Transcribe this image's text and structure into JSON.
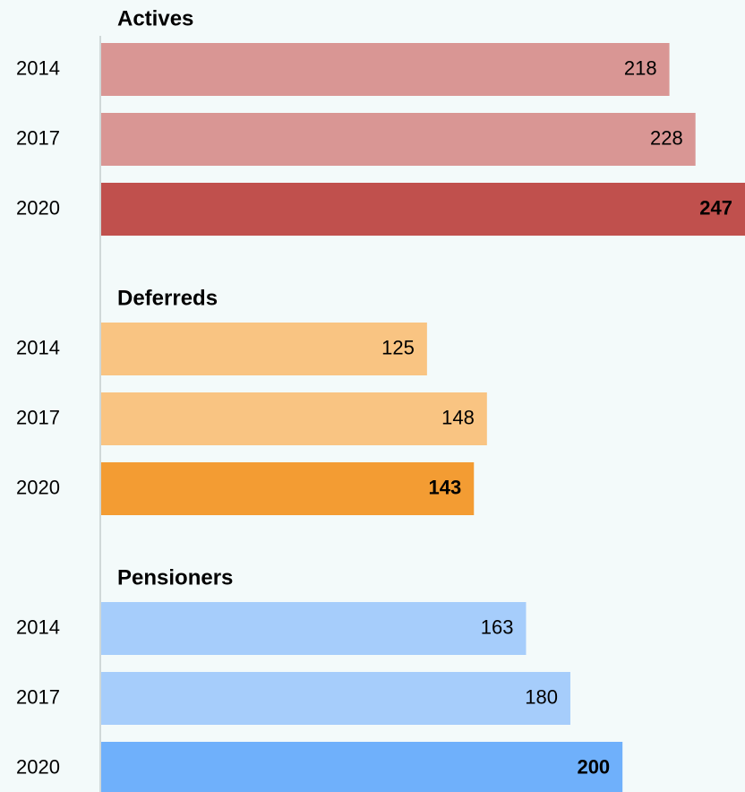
{
  "chart_data": {
    "type": "bar",
    "orientation": "horizontal",
    "xlim": [
      0,
      247
    ],
    "groups": [
      {
        "name": "Actives",
        "categories": [
          "2014",
          "2017",
          "2020"
        ],
        "values": [
          218,
          228,
          247
        ],
        "colors": [
          "#d99694",
          "#d99694",
          "#c0504d"
        ],
        "bold": [
          false,
          false,
          true
        ]
      },
      {
        "name": "Deferreds",
        "categories": [
          "2014",
          "2017",
          "2020"
        ],
        "values": [
          125,
          148,
          143
        ],
        "colors": [
          "#f9c482",
          "#f9c482",
          "#f39c33"
        ],
        "bold": [
          false,
          false,
          true
        ]
      },
      {
        "name": "Pensioners",
        "categories": [
          "2014",
          "2017",
          "2020"
        ],
        "values": [
          163,
          180,
          200
        ],
        "colors": [
          "#a6cdfb",
          "#a6cdfb",
          "#6fb0fb"
        ],
        "bold": [
          false,
          false,
          true
        ]
      }
    ]
  }
}
